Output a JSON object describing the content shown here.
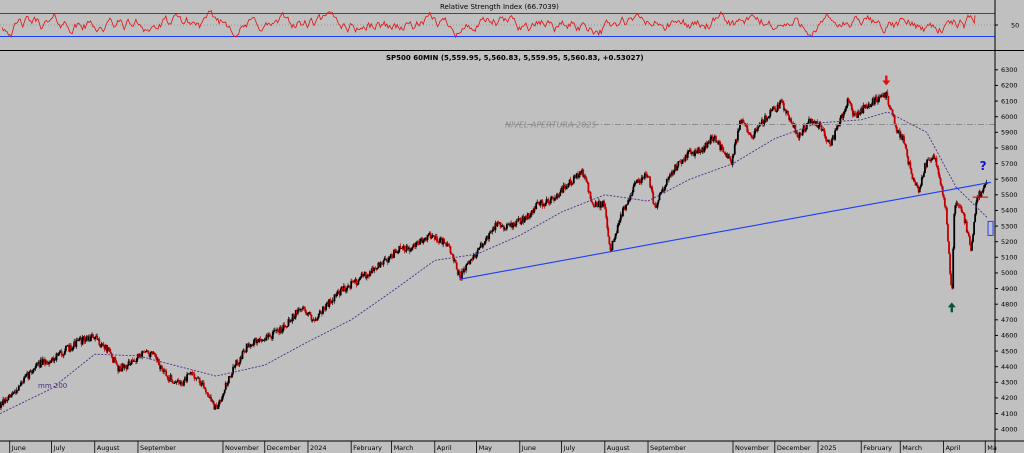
{
  "rsi_panel": {
    "title": "Relative Strength Index (66.7039)",
    "y_ticks": [
      {
        "label": "50",
        "value": 50
      }
    ],
    "upper_band": 70,
    "lower_band": 30,
    "current_value": 66.7039
  },
  "chart_data": {
    "type": "candlestick",
    "title": "SP500 60MIN (5,559.95, 5,560.83, 5,559.95, 5,560.83, +0.53027)",
    "ylim": [
      3950,
      6350
    ],
    "y_ticks": [
      4000,
      4100,
      4200,
      4300,
      4400,
      4500,
      4600,
      4700,
      4800,
      4900,
      5000,
      5100,
      5200,
      5300,
      5400,
      5500,
      5600,
      5700,
      5800,
      5900,
      6000,
      6100,
      6200,
      6300
    ],
    "x_ticks": [
      {
        "label": "June",
        "date": "2023-06"
      },
      {
        "label": "July",
        "date": "2023-07"
      },
      {
        "label": "August",
        "date": "2023-08"
      },
      {
        "label": "September",
        "date": "2023-09"
      },
      {
        "label": "November",
        "date": "2023-11"
      },
      {
        "label": "December",
        "date": "2023-12"
      },
      {
        "label": "2024",
        "date": "2024-01"
      },
      {
        "label": "February",
        "date": "2024-02"
      },
      {
        "label": "March",
        "date": "2024-03"
      },
      {
        "label": "April",
        "date": "2024-04"
      },
      {
        "label": "May",
        "date": "2024-05"
      },
      {
        "label": "June",
        "date": "2024-06"
      },
      {
        "label": "July",
        "date": "2024-07"
      },
      {
        "label": "August",
        "date": "2024-08"
      },
      {
        "label": "September",
        "date": "2024-09"
      },
      {
        "label": "November",
        "date": "2024-11"
      },
      {
        "label": "December",
        "date": "2024-12"
      },
      {
        "label": "2025",
        "date": "2025-01"
      },
      {
        "label": "February",
        "date": "2025-02"
      },
      {
        "label": "March",
        "date": "2025-03"
      },
      {
        "label": "April",
        "date": "2025-04"
      },
      {
        "label": "Ma",
        "date": "2025-05"
      }
    ],
    "price_series": [
      [
        "2023-05-25",
        4150
      ],
      [
        "2023-06-01",
        4200
      ],
      [
        "2023-06-10",
        4300
      ],
      [
        "2023-06-20",
        4410
      ],
      [
        "2023-06-30",
        4440
      ],
      [
        "2023-07-10",
        4500
      ],
      [
        "2023-07-20",
        4560
      ],
      [
        "2023-07-31",
        4590
      ],
      [
        "2023-08-10",
        4510
      ],
      [
        "2023-08-18",
        4390
      ],
      [
        "2023-08-28",
        4420
      ],
      [
        "2023-09-05",
        4500
      ],
      [
        "2023-09-12",
        4470
      ],
      [
        "2023-09-22",
        4330
      ],
      [
        "2023-10-02",
        4290
      ],
      [
        "2023-10-10",
        4360
      ],
      [
        "2023-10-20",
        4250
      ],
      [
        "2023-10-27",
        4120
      ],
      [
        "2023-11-02",
        4260
      ],
      [
        "2023-11-10",
        4410
      ],
      [
        "2023-11-20",
        4550
      ],
      [
        "2023-12-01",
        4580
      ],
      [
        "2023-12-10",
        4620
      ],
      [
        "2023-12-20",
        4710
      ],
      [
        "2023-12-28",
        4780
      ],
      [
        "2024-01-05",
        4700
      ],
      [
        "2024-01-15",
        4800
      ],
      [
        "2024-01-25",
        4890
      ],
      [
        "2024-02-05",
        4950
      ],
      [
        "2024-02-15",
        5010
      ],
      [
        "2024-02-26",
        5080
      ],
      [
        "2024-03-06",
        5150
      ],
      [
        "2024-03-15",
        5150
      ],
      [
        "2024-03-28",
        5250
      ],
      [
        "2024-04-05",
        5210
      ],
      [
        "2024-04-12",
        5150
      ],
      [
        "2024-04-19",
        4970
      ],
      [
        "2024-04-26",
        5070
      ],
      [
        "2024-05-06",
        5190
      ],
      [
        "2024-05-15",
        5310
      ],
      [
        "2024-05-24",
        5300
      ],
      [
        "2024-06-05",
        5350
      ],
      [
        "2024-06-13",
        5430
      ],
      [
        "2024-06-24",
        5470
      ],
      [
        "2024-07-05",
        5560
      ],
      [
        "2024-07-16",
        5650
      ],
      [
        "2024-07-24",
        5430
      ],
      [
        "2024-08-01",
        5440
      ],
      [
        "2024-08-05",
        5140
      ],
      [
        "2024-08-12",
        5350
      ],
      [
        "2024-08-22",
        5560
      ],
      [
        "2024-09-01",
        5630
      ],
      [
        "2024-09-06",
        5410
      ],
      [
        "2024-09-16",
        5630
      ],
      [
        "2024-09-30",
        5760
      ],
      [
        "2024-10-10",
        5790
      ],
      [
        "2024-10-18",
        5870
      ],
      [
        "2024-10-31",
        5710
      ],
      [
        "2024-11-07",
        5990
      ],
      [
        "2024-11-15",
        5870
      ],
      [
        "2024-11-25",
        6000
      ],
      [
        "2024-12-06",
        6090
      ],
      [
        "2024-12-18",
        5880
      ],
      [
        "2024-12-27",
        5980
      ],
      [
        "2025-01-03",
        5930
      ],
      [
        "2025-01-10",
        5820
      ],
      [
        "2025-01-23",
        6110
      ],
      [
        "2025-01-27",
        6000
      ],
      [
        "2025-02-06",
        6080
      ],
      [
        "2025-02-19",
        6150
      ],
      [
        "2025-02-25",
        5950
      ],
      [
        "2025-03-03",
        5850
      ],
      [
        "2025-03-10",
        5600
      ],
      [
        "2025-03-14",
        5520
      ],
      [
        "2025-03-19",
        5700
      ],
      [
        "2025-03-26",
        5740
      ],
      [
        "2025-03-31",
        5550
      ],
      [
        "2025-04-03",
        5390
      ],
      [
        "2025-04-07",
        4840
      ],
      [
        "2025-04-09",
        5450
      ],
      [
        "2025-04-15",
        5390
      ],
      [
        "2025-04-21",
        5150
      ],
      [
        "2025-04-25",
        5480
      ],
      [
        "2025-05-02",
        5560
      ]
    ],
    "moving_average": {
      "name": "mm 200",
      "points": [
        [
          "2023-05-25",
          4100
        ],
        [
          "2023-07-01",
          4260
        ],
        [
          "2023-08-01",
          4480
        ],
        [
          "2023-09-01",
          4470
        ],
        [
          "2023-10-01",
          4400
        ],
        [
          "2023-10-27",
          4340
        ],
        [
          "2023-12-01",
          4410
        ],
        [
          "2024-01-01",
          4560
        ],
        [
          "2024-02-01",
          4700
        ],
        [
          "2024-03-01",
          4880
        ],
        [
          "2024-04-01",
          5080
        ],
        [
          "2024-05-01",
          5120
        ],
        [
          "2024-06-01",
          5240
        ],
        [
          "2024-07-01",
          5390
        ],
        [
          "2024-08-01",
          5500
        ],
        [
          "2024-09-01",
          5460
        ],
        [
          "2024-10-01",
          5600
        ],
        [
          "2024-11-01",
          5700
        ],
        [
          "2024-12-01",
          5860
        ],
        [
          "2025-01-01",
          5960
        ],
        [
          "2025-02-01",
          5980
        ],
        [
          "2025-02-20",
          6030
        ],
        [
          "2025-03-20",
          5900
        ],
        [
          "2025-04-10",
          5550
        ],
        [
          "2025-05-03",
          5350
        ]
      ]
    },
    "trendline": {
      "start": [
        "2024-04-19",
        4960
      ],
      "end": [
        "2025-05-05",
        5580
      ]
    },
    "annotations": [
      {
        "kind": "hline",
        "label": "NIVEL APERTURA 2025",
        "value": 5950,
        "style": "dash-dot"
      },
      {
        "kind": "marker-down",
        "date": "2025-02-19",
        "value": 6225,
        "color": "#e01010"
      },
      {
        "kind": "marker-up",
        "date": "2025-04-07",
        "value": 4780,
        "color": "#0a5040"
      },
      {
        "kind": "text",
        "label": "?",
        "date": "2025-04-27",
        "value": 5660,
        "color": "#1010e0"
      },
      {
        "kind": "short-hline",
        "value": 5485,
        "from": "2025-04-22",
        "to": "2025-05-03",
        "color": "#e01010"
      },
      {
        "kind": "box",
        "from": "2025-05-03",
        "to": "2025-05-06",
        "low": 5240,
        "high": 5330,
        "color": "#2040ff"
      }
    ]
  }
}
